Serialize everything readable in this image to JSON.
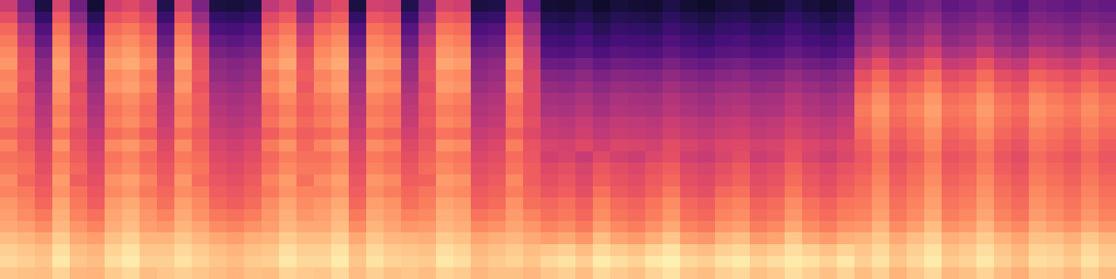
{
  "chart_data": {
    "type": "heatmap",
    "color": "magma",
    "tick_labels": false,
    "zlim": [
      0,
      100
    ],
    "cells": [
      [
        55,
        35,
        12,
        58,
        33,
        10,
        56,
        60,
        54,
        14,
        57,
        36,
        12,
        11,
        13,
        52,
        58,
        37,
        55,
        60,
        12,
        57,
        55,
        14,
        34,
        58,
        56,
        12,
        13,
        54,
        30,
        10,
        9,
        12,
        8,
        11,
        10,
        9,
        13,
        10,
        8,
        11,
        12,
        9,
        10,
        14,
        11,
        9,
        12,
        30,
        33,
        28,
        32,
        35,
        29,
        31,
        34,
        30,
        27,
        33,
        31,
        29,
        32,
        30
      ],
      [
        62,
        42,
        18,
        65,
        40,
        16,
        63,
        66,
        60,
        20,
        64,
        43,
        18,
        17,
        19,
        60,
        65,
        44,
        62,
        66,
        18,
        64,
        61,
        20,
        41,
        65,
        63,
        18,
        19,
        61,
        38,
        14,
        13,
        16,
        12,
        15,
        14,
        13,
        17,
        14,
        12,
        15,
        16,
        13,
        14,
        18,
        15,
        13,
        16,
        34,
        37,
        32,
        36,
        40,
        33,
        35,
        38,
        34,
        31,
        37,
        35,
        33,
        36,
        34
      ],
      [
        68,
        50,
        25,
        70,
        48,
        22,
        69,
        72,
        66,
        27,
        70,
        51,
        24,
        23,
        26,
        66,
        71,
        52,
        68,
        72,
        25,
        70,
        67,
        27,
        49,
        71,
        69,
        24,
        26,
        67,
        44,
        18,
        17,
        20,
        16,
        19,
        18,
        17,
        21,
        18,
        16,
        19,
        20,
        17,
        18,
        22,
        19,
        17,
        20,
        38,
        42,
        36,
        40,
        45,
        37,
        39,
        43,
        38,
        35,
        41,
        40,
        37,
        41,
        38
      ],
      [
        72,
        55,
        30,
        74,
        53,
        28,
        73,
        76,
        70,
        32,
        74,
        56,
        30,
        28,
        31,
        70,
        75,
        57,
        72,
        76,
        30,
        74,
        71,
        32,
        54,
        75,
        73,
        29,
        31,
        71,
        48,
        22,
        21,
        24,
        20,
        23,
        22,
        21,
        25,
        22,
        20,
        23,
        24,
        21,
        22,
        26,
        23,
        21,
        24,
        42,
        47,
        40,
        44,
        50,
        41,
        43,
        48,
        42,
        39,
        46,
        44,
        41,
        45,
        42
      ],
      [
        75,
        60,
        35,
        77,
        58,
        33,
        76,
        79,
        73,
        37,
        77,
        61,
        35,
        33,
        36,
        73,
        78,
        62,
        75,
        79,
        35,
        77,
        74,
        37,
        59,
        78,
        76,
        34,
        36,
        74,
        52,
        26,
        25,
        28,
        24,
        27,
        26,
        25,
        29,
        26,
        24,
        27,
        28,
        25,
        26,
        30,
        27,
        25,
        28,
        48,
        54,
        46,
        50,
        57,
        47,
        49,
        55,
        48,
        45,
        53,
        50,
        47,
        52,
        48
      ],
      [
        78,
        62,
        40,
        80,
        60,
        38,
        79,
        82,
        76,
        42,
        80,
        63,
        40,
        38,
        41,
        76,
        81,
        64,
        78,
        82,
        40,
        80,
        77,
        42,
        61,
        81,
        79,
        39,
        41,
        77,
        55,
        32,
        31,
        34,
        30,
        33,
        32,
        31,
        35,
        32,
        30,
        33,
        34,
        31,
        32,
        36,
        33,
        31,
        34,
        55,
        62,
        53,
        57,
        64,
        54,
        56,
        63,
        55,
        52,
        60,
        57,
        54,
        59,
        55
      ],
      [
        74,
        64,
        42,
        77,
        62,
        40,
        75,
        78,
        72,
        44,
        76,
        65,
        42,
        40,
        43,
        72,
        77,
        66,
        74,
        78,
        42,
        76,
        73,
        44,
        63,
        77,
        75,
        41,
        43,
        73,
        58,
        38,
        37,
        40,
        36,
        39,
        38,
        37,
        41,
        38,
        36,
        39,
        40,
        37,
        38,
        42,
        39,
        37,
        40,
        62,
        68,
        60,
        64,
        70,
        61,
        63,
        69,
        62,
        59,
        67,
        64,
        61,
        66,
        62
      ],
      [
        76,
        62,
        45,
        78,
        60,
        43,
        77,
        80,
        74,
        47,
        78,
        63,
        45,
        43,
        46,
        74,
        79,
        64,
        76,
        80,
        45,
        78,
        75,
        47,
        61,
        79,
        77,
        44,
        46,
        75,
        58,
        42,
        41,
        44,
        40,
        43,
        42,
        41,
        45,
        42,
        40,
        43,
        44,
        41,
        42,
        46,
        43,
        41,
        44,
        66,
        72,
        64,
        68,
        74,
        65,
        67,
        73,
        66,
        63,
        71,
        68,
        65,
        70,
        66
      ],
      [
        72,
        65,
        48,
        75,
        63,
        46,
        73,
        76,
        70,
        50,
        74,
        66,
        48,
        46,
        49,
        70,
        75,
        67,
        72,
        76,
        48,
        74,
        71,
        50,
        64,
        75,
        73,
        47,
        49,
        71,
        60,
        46,
        45,
        48,
        44,
        47,
        46,
        45,
        49,
        46,
        44,
        47,
        48,
        45,
        46,
        50,
        47,
        45,
        48,
        70,
        76,
        68,
        72,
        78,
        69,
        71,
        77,
        70,
        67,
        75,
        72,
        69,
        74,
        70
      ],
      [
        70,
        64,
        50,
        73,
        62,
        48,
        71,
        74,
        68,
        52,
        72,
        65,
        50,
        48,
        51,
        68,
        73,
        66,
        70,
        74,
        50,
        72,
        69,
        52,
        63,
        73,
        71,
        49,
        51,
        69,
        60,
        48,
        47,
        50,
        46,
        49,
        48,
        47,
        51,
        48,
        46,
        49,
        50,
        47,
        48,
        52,
        49,
        47,
        50,
        72,
        78,
        70,
        74,
        80,
        71,
        73,
        79,
        72,
        69,
        77,
        74,
        71,
        76,
        72
      ],
      [
        72,
        66,
        52,
        75,
        64,
        50,
        73,
        76,
        70,
        54,
        74,
        67,
        52,
        50,
        53,
        70,
        75,
        68,
        72,
        76,
        52,
        74,
        71,
        54,
        65,
        75,
        73,
        51,
        53,
        71,
        62,
        52,
        51,
        54,
        50,
        53,
        52,
        51,
        55,
        52,
        50,
        53,
        54,
        51,
        52,
        56,
        53,
        51,
        54,
        70,
        76,
        68,
        72,
        78,
        69,
        71,
        77,
        70,
        67,
        75,
        72,
        69,
        74,
        70
      ],
      [
        68,
        64,
        55,
        71,
        62,
        53,
        69,
        72,
        66,
        57,
        70,
        65,
        55,
        53,
        56,
        66,
        71,
        66,
        68,
        72,
        55,
        70,
        67,
        57,
        63,
        71,
        69,
        54,
        56,
        67,
        60,
        54,
        53,
        56,
        52,
        55,
        54,
        53,
        57,
        54,
        52,
        55,
        56,
        53,
        54,
        58,
        55,
        53,
        56,
        68,
        74,
        66,
        70,
        76,
        67,
        69,
        75,
        68,
        65,
        73,
        70,
        67,
        72,
        68
      ],
      [
        74,
        66,
        58,
        77,
        64,
        56,
        75,
        78,
        72,
        60,
        76,
        67,
        58,
        56,
        59,
        72,
        77,
        68,
        74,
        78,
        58,
        76,
        73,
        60,
        65,
        77,
        75,
        57,
        59,
        73,
        63,
        58,
        57,
        60,
        56,
        59,
        58,
        57,
        61,
        58,
        56,
        59,
        60,
        57,
        58,
        62,
        59,
        57,
        60,
        66,
        72,
        64,
        68,
        74,
        65,
        67,
        73,
        66,
        63,
        71,
        68,
        65,
        70,
        66
      ],
      [
        70,
        68,
        60,
        73,
        66,
        58,
        71,
        74,
        68,
        62,
        72,
        69,
        60,
        58,
        61,
        68,
        73,
        70,
        70,
        74,
        60,
        72,
        69,
        62,
        67,
        73,
        71,
        59,
        61,
        69,
        64,
        56,
        58,
        54,
        60,
        57,
        55,
        59,
        62,
        56,
        54,
        58,
        61,
        55,
        57,
        63,
        58,
        55,
        59,
        64,
        70,
        62,
        66,
        72,
        63,
        65,
        71,
        64,
        61,
        69,
        66,
        63,
        68,
        64
      ],
      [
        72,
        70,
        62,
        75,
        68,
        60,
        73,
        76,
        70,
        64,
        74,
        71,
        62,
        60,
        63,
        70,
        75,
        72,
        72,
        76,
        62,
        74,
        71,
        64,
        69,
        75,
        73,
        61,
        63,
        71,
        66,
        60,
        62,
        58,
        64,
        61,
        59,
        63,
        66,
        60,
        58,
        62,
        65,
        59,
        61,
        67,
        62,
        59,
        63,
        66,
        72,
        64,
        68,
        74,
        65,
        67,
        73,
        66,
        63,
        71,
        68,
        65,
        70,
        66
      ],
      [
        76,
        68,
        64,
        79,
        66,
        62,
        77,
        80,
        74,
        66,
        78,
        69,
        64,
        62,
        65,
        74,
        79,
        70,
        76,
        80,
        64,
        78,
        75,
        66,
        67,
        79,
        77,
        63,
        65,
        75,
        66,
        62,
        64,
        60,
        66,
        63,
        61,
        65,
        68,
        62,
        60,
        64,
        67,
        61,
        63,
        69,
        64,
        61,
        65,
        68,
        74,
        66,
        70,
        76,
        67,
        69,
        75,
        68,
        65,
        73,
        70,
        67,
        72,
        68
      ],
      [
        74,
        72,
        66,
        77,
        70,
        64,
        75,
        78,
        72,
        68,
        76,
        73,
        66,
        64,
        67,
        72,
        77,
        74,
        74,
        78,
        66,
        76,
        73,
        68,
        71,
        77,
        75,
        65,
        67,
        73,
        68,
        64,
        66,
        62,
        70,
        65,
        63,
        67,
        72,
        64,
        62,
        68,
        70,
        63,
        65,
        72,
        66,
        63,
        67,
        70,
        76,
        68,
        72,
        78,
        69,
        71,
        77,
        70,
        67,
        75,
        72,
        69,
        74,
        70
      ],
      [
        78,
        74,
        68,
        81,
        72,
        66,
        79,
        82,
        76,
        70,
        80,
        75,
        68,
        66,
        69,
        76,
        81,
        76,
        78,
        82,
        68,
        80,
        77,
        70,
        73,
        81,
        79,
        67,
        69,
        77,
        70,
        68,
        70,
        66,
        74,
        69,
        67,
        71,
        76,
        68,
        66,
        72,
        74,
        67,
        69,
        76,
        70,
        67,
        71,
        72,
        78,
        70,
        74,
        80,
        71,
        73,
        79,
        72,
        69,
        77,
        74,
        71,
        76,
        72
      ],
      [
        80,
        76,
        72,
        83,
        74,
        70,
        81,
        84,
        78,
        74,
        82,
        77,
        72,
        70,
        73,
        78,
        83,
        78,
        80,
        84,
        72,
        82,
        79,
        74,
        75,
        83,
        81,
        71,
        73,
        79,
        74,
        70,
        72,
        68,
        76,
        71,
        69,
        73,
        78,
        70,
        68,
        74,
        76,
        69,
        71,
        78,
        72,
        69,
        73,
        74,
        80,
        72,
        76,
        82,
        73,
        75,
        81,
        74,
        71,
        79,
        76,
        73,
        78,
        74
      ],
      [
        82,
        80,
        76,
        85,
        78,
        74,
        83,
        86,
        80,
        78,
        84,
        81,
        76,
        74,
        77,
        80,
        85,
        82,
        82,
        86,
        76,
        84,
        81,
        78,
        79,
        85,
        83,
        75,
        77,
        81,
        78,
        74,
        76,
        72,
        80,
        75,
        73,
        77,
        82,
        74,
        72,
        78,
        80,
        73,
        75,
        82,
        76,
        73,
        77,
        78,
        84,
        76,
        80,
        86,
        77,
        79,
        85,
        78,
        75,
        83,
        80,
        77,
        82,
        78
      ],
      [
        86,
        84,
        82,
        89,
        82,
        80,
        87,
        90,
        84,
        84,
        88,
        85,
        82,
        80,
        83,
        84,
        89,
        86,
        86,
        90,
        82,
        88,
        85,
        84,
        83,
        89,
        87,
        81,
        83,
        85,
        82,
        80,
        82,
        78,
        86,
        81,
        79,
        83,
        88,
        80,
        78,
        84,
        86,
        79,
        81,
        88,
        82,
        79,
        83,
        84,
        88,
        82,
        86,
        90,
        83,
        85,
        89,
        84,
        81,
        87,
        86,
        83,
        88,
        84
      ],
      [
        90,
        88,
        86,
        93,
        86,
        84,
        91,
        94,
        88,
        88,
        92,
        89,
        86,
        84,
        87,
        88,
        93,
        90,
        90,
        94,
        86,
        92,
        89,
        88,
        87,
        93,
        91,
        85,
        87,
        89,
        86,
        88,
        90,
        86,
        92,
        89,
        87,
        91,
        94,
        88,
        86,
        90,
        92,
        87,
        89,
        93,
        90,
        87,
        91,
        88,
        92,
        86,
        90,
        94,
        87,
        89,
        93,
        88,
        85,
        91,
        90,
        87,
        92,
        88
      ],
      [
        92,
        90,
        88,
        95,
        88,
        86,
        93,
        96,
        90,
        90,
        94,
        91,
        88,
        86,
        89,
        90,
        95,
        92,
        92,
        96,
        88,
        94,
        91,
        90,
        89,
        95,
        93,
        87,
        89,
        91,
        88,
        92,
        94,
        90,
        96,
        93,
        91,
        95,
        97,
        92,
        90,
        94,
        96,
        91,
        93,
        96,
        94,
        91,
        95,
        90,
        94,
        88,
        92,
        96,
        89,
        91,
        95,
        90,
        87,
        93,
        92,
        89,
        94,
        90
      ],
      [
        88,
        87,
        86,
        91,
        85,
        84,
        89,
        92,
        86,
        88,
        90,
        88,
        86,
        84,
        87,
        86,
        91,
        89,
        88,
        92,
        86,
        90,
        87,
        88,
        86,
        91,
        89,
        85,
        87,
        87,
        85,
        88,
        90,
        86,
        92,
        89,
        87,
        91,
        94,
        88,
        86,
        90,
        92,
        87,
        89,
        93,
        90,
        87,
        91,
        86,
        90,
        84,
        88,
        92,
        85,
        87,
        91,
        86,
        83,
        89,
        88,
        85,
        90,
        86
      ]
    ]
  }
}
